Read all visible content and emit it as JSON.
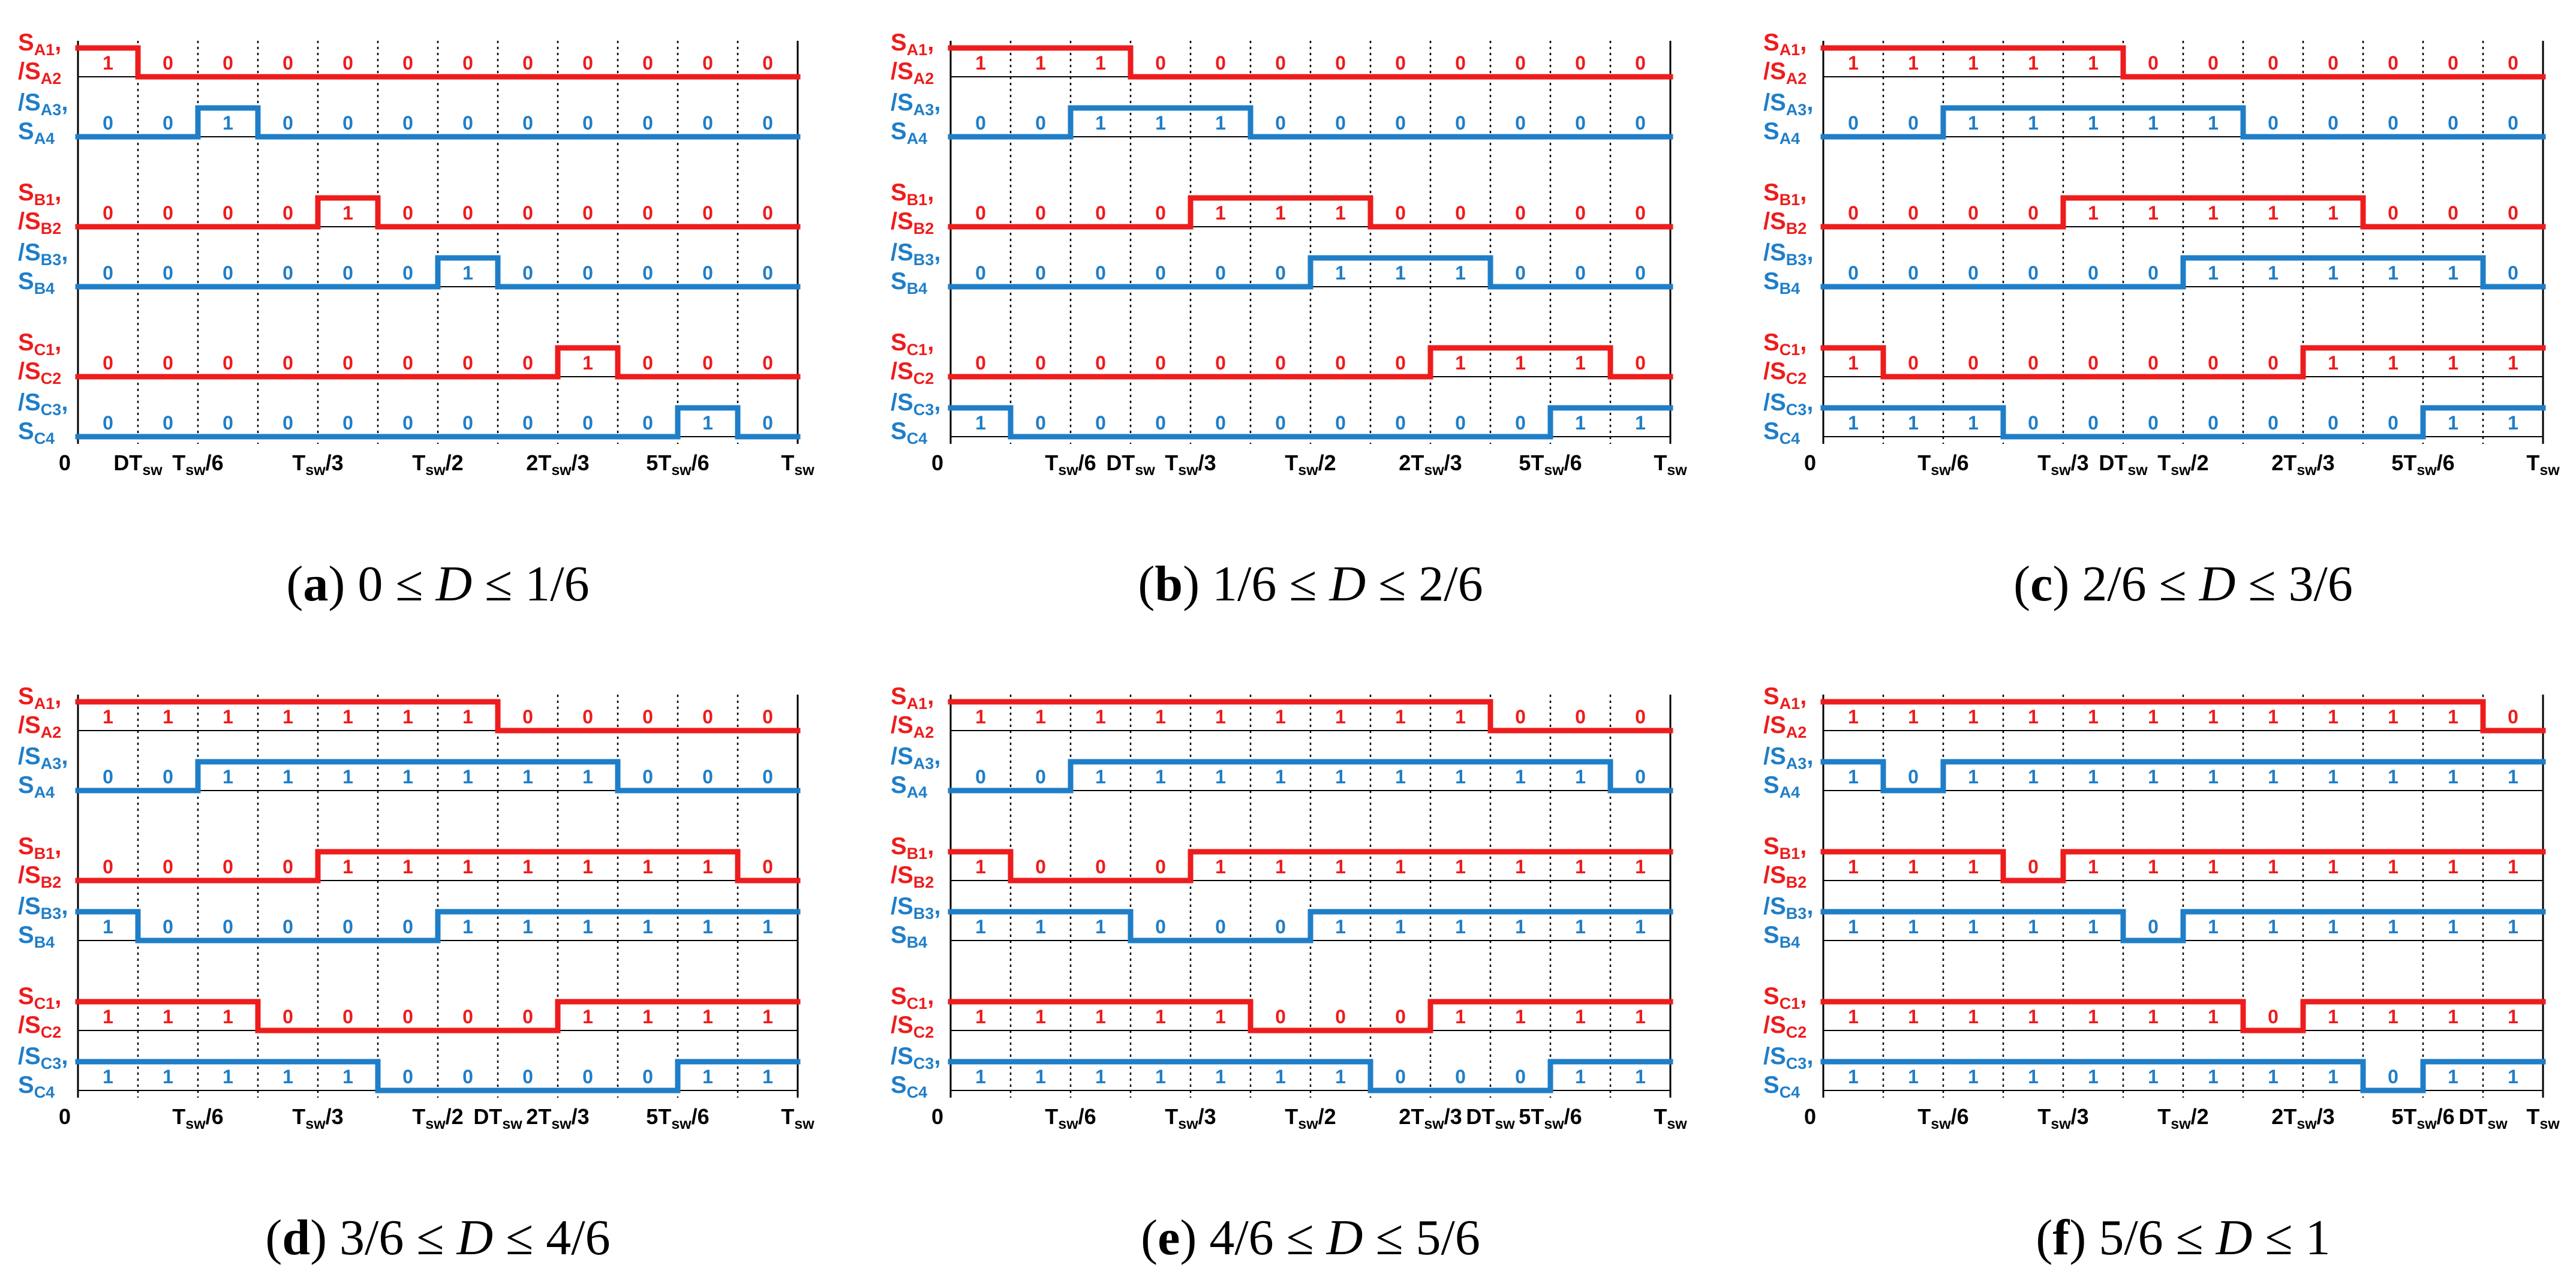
{
  "colors": {
    "red": "#ee1c1c",
    "blue": "#1f7ec8",
    "black": "#000000"
  },
  "row_labels": [
    [
      {
        "s": "S",
        "sub": "A1",
        "tail": ","
      },
      {
        "s": "/S",
        "sub": "A2",
        "tail": ""
      }
    ],
    [
      {
        "s": "/S",
        "sub": "A3",
        "tail": ","
      },
      {
        "s": "S",
        "sub": "A4",
        "tail": ""
      }
    ],
    [
      {
        "s": "S",
        "sub": "B1",
        "tail": ","
      },
      {
        "s": "/S",
        "sub": "B2",
        "tail": ""
      }
    ],
    [
      {
        "s": "/S",
        "sub": "B3",
        "tail": ","
      },
      {
        "s": "S",
        "sub": "B4",
        "tail": ""
      }
    ],
    [
      {
        "s": "S",
        "sub": "C1",
        "tail": ","
      },
      {
        "s": "/S",
        "sub": "C2",
        "tail": ""
      }
    ],
    [
      {
        "s": "/S",
        "sub": "C3",
        "tail": ","
      },
      {
        "s": "S",
        "sub": "C4",
        "tail": ""
      }
    ]
  ],
  "panels": [
    {
      "caption": {
        "letter": "a",
        "before": ") 0 ≤ ",
        "var": "D",
        "after": " ≤ 1/6"
      },
      "states": [
        [
          1,
          0,
          0,
          0,
          0,
          0,
          0,
          0,
          0,
          0,
          0,
          0
        ],
        [
          0,
          0,
          1,
          0,
          0,
          0,
          0,
          0,
          0,
          0,
          0,
          0
        ],
        [
          0,
          0,
          0,
          0,
          1,
          0,
          0,
          0,
          0,
          0,
          0,
          0
        ],
        [
          0,
          0,
          0,
          0,
          0,
          0,
          1,
          0,
          0,
          0,
          0,
          0
        ],
        [
          0,
          0,
          0,
          0,
          0,
          0,
          0,
          0,
          1,
          0,
          0,
          0
        ],
        [
          0,
          0,
          0,
          0,
          0,
          0,
          0,
          0,
          0,
          0,
          1,
          0
        ]
      ],
      "ticks": [
        {
          "slot": 0,
          "pre": "0",
          "sub": "",
          "post": ""
        },
        {
          "slot": 1,
          "pre": "DT",
          "sub": "sw",
          "post": ""
        },
        {
          "slot": 2,
          "pre": "T",
          "sub": "sw",
          "post": "/6"
        },
        {
          "slot": 4,
          "pre": "T",
          "sub": "sw",
          "post": "/3"
        },
        {
          "slot": 6,
          "pre": "T",
          "sub": "sw",
          "post": "/2"
        },
        {
          "slot": 8,
          "pre": "2T",
          "sub": "sw",
          "post": "/3"
        },
        {
          "slot": 10,
          "pre": "5T",
          "sub": "sw",
          "post": "/6"
        },
        {
          "slot": 12,
          "pre": "T",
          "sub": "sw",
          "post": ""
        }
      ]
    },
    {
      "caption": {
        "letter": "b",
        "before": ") 1/6 ≤ ",
        "var": "D",
        "after": " ≤ 2/6"
      },
      "states": [
        [
          1,
          1,
          1,
          0,
          0,
          0,
          0,
          0,
          0,
          0,
          0,
          0
        ],
        [
          0,
          0,
          1,
          1,
          1,
          0,
          0,
          0,
          0,
          0,
          0,
          0
        ],
        [
          0,
          0,
          0,
          0,
          1,
          1,
          1,
          0,
          0,
          0,
          0,
          0
        ],
        [
          0,
          0,
          0,
          0,
          0,
          0,
          1,
          1,
          1,
          0,
          0,
          0
        ],
        [
          0,
          0,
          0,
          0,
          0,
          0,
          0,
          0,
          1,
          1,
          1,
          0
        ],
        [
          1,
          0,
          0,
          0,
          0,
          0,
          0,
          0,
          0,
          0,
          1,
          1
        ]
      ],
      "ticks": [
        {
          "slot": 0,
          "pre": "0",
          "sub": "",
          "post": ""
        },
        {
          "slot": 2,
          "pre": "T",
          "sub": "sw",
          "post": "/6"
        },
        {
          "slot": 3,
          "pre": "DT",
          "sub": "sw",
          "post": ""
        },
        {
          "slot": 4,
          "pre": "T",
          "sub": "sw",
          "post": "/3"
        },
        {
          "slot": 6,
          "pre": "T",
          "sub": "sw",
          "post": "/2"
        },
        {
          "slot": 8,
          "pre": "2T",
          "sub": "sw",
          "post": "/3"
        },
        {
          "slot": 10,
          "pre": "5T",
          "sub": "sw",
          "post": "/6"
        },
        {
          "slot": 12,
          "pre": "T",
          "sub": "sw",
          "post": ""
        }
      ]
    },
    {
      "caption": {
        "letter": "c",
        "before": ") 2/6 ≤ ",
        "var": "D",
        "after": " ≤ 3/6"
      },
      "states": [
        [
          1,
          1,
          1,
          1,
          1,
          0,
          0,
          0,
          0,
          0,
          0,
          0
        ],
        [
          0,
          0,
          1,
          1,
          1,
          1,
          1,
          0,
          0,
          0,
          0,
          0
        ],
        [
          0,
          0,
          0,
          0,
          1,
          1,
          1,
          1,
          1,
          0,
          0,
          0
        ],
        [
          0,
          0,
          0,
          0,
          0,
          0,
          1,
          1,
          1,
          1,
          1,
          0
        ],
        [
          1,
          0,
          0,
          0,
          0,
          0,
          0,
          0,
          1,
          1,
          1,
          1
        ],
        [
          1,
          1,
          1,
          0,
          0,
          0,
          0,
          0,
          0,
          0,
          1,
          1
        ]
      ],
      "ticks": [
        {
          "slot": 0,
          "pre": "0",
          "sub": "",
          "post": ""
        },
        {
          "slot": 2,
          "pre": "T",
          "sub": "sw",
          "post": "/6"
        },
        {
          "slot": 4,
          "pre": "T",
          "sub": "sw",
          "post": "/3"
        },
        {
          "slot": 5,
          "pre": "DT",
          "sub": "sw",
          "post": ""
        },
        {
          "slot": 6,
          "pre": "T",
          "sub": "sw",
          "post": "/2"
        },
        {
          "slot": 8,
          "pre": "2T",
          "sub": "sw",
          "post": "/3"
        },
        {
          "slot": 10,
          "pre": "5T",
          "sub": "sw",
          "post": "/6"
        },
        {
          "slot": 12,
          "pre": "T",
          "sub": "sw",
          "post": ""
        }
      ]
    },
    {
      "caption": {
        "letter": "d",
        "before": ") 3/6 ≤ ",
        "var": "D",
        "after": " ≤ 4/6"
      },
      "states": [
        [
          1,
          1,
          1,
          1,
          1,
          1,
          1,
          0,
          0,
          0,
          0,
          0
        ],
        [
          0,
          0,
          1,
          1,
          1,
          1,
          1,
          1,
          1,
          0,
          0,
          0
        ],
        [
          0,
          0,
          0,
          0,
          1,
          1,
          1,
          1,
          1,
          1,
          1,
          0
        ],
        [
          1,
          0,
          0,
          0,
          0,
          0,
          1,
          1,
          1,
          1,
          1,
          1
        ],
        [
          1,
          1,
          1,
          0,
          0,
          0,
          0,
          0,
          1,
          1,
          1,
          1
        ],
        [
          1,
          1,
          1,
          1,
          1,
          0,
          0,
          0,
          0,
          0,
          1,
          1
        ]
      ],
      "ticks": [
        {
          "slot": 0,
          "pre": "0",
          "sub": "",
          "post": ""
        },
        {
          "slot": 2,
          "pre": "T",
          "sub": "sw",
          "post": "/6"
        },
        {
          "slot": 4,
          "pre": "T",
          "sub": "sw",
          "post": "/3"
        },
        {
          "slot": 6,
          "pre": "T",
          "sub": "sw",
          "post": "/2"
        },
        {
          "slot": 7,
          "pre": "DT",
          "sub": "sw",
          "post": ""
        },
        {
          "slot": 8,
          "pre": "2T",
          "sub": "sw",
          "post": "/3"
        },
        {
          "slot": 10,
          "pre": "5T",
          "sub": "sw",
          "post": "/6"
        },
        {
          "slot": 12,
          "pre": "T",
          "sub": "sw",
          "post": ""
        }
      ]
    },
    {
      "caption": {
        "letter": "e",
        "before": ") 4/6 ≤ ",
        "var": "D",
        "after": " ≤ 5/6"
      },
      "states": [
        [
          1,
          1,
          1,
          1,
          1,
          1,
          1,
          1,
          1,
          0,
          0,
          0
        ],
        [
          0,
          0,
          1,
          1,
          1,
          1,
          1,
          1,
          1,
          1,
          1,
          0
        ],
        [
          1,
          0,
          0,
          0,
          1,
          1,
          1,
          1,
          1,
          1,
          1,
          1
        ],
        [
          1,
          1,
          1,
          0,
          0,
          0,
          1,
          1,
          1,
          1,
          1,
          1
        ],
        [
          1,
          1,
          1,
          1,
          1,
          0,
          0,
          0,
          1,
          1,
          1,
          1
        ],
        [
          1,
          1,
          1,
          1,
          1,
          1,
          1,
          0,
          0,
          0,
          1,
          1
        ]
      ],
      "ticks": [
        {
          "slot": 0,
          "pre": "0",
          "sub": "",
          "post": ""
        },
        {
          "slot": 2,
          "pre": "T",
          "sub": "sw",
          "post": "/6"
        },
        {
          "slot": 4,
          "pre": "T",
          "sub": "sw",
          "post": "/3"
        },
        {
          "slot": 6,
          "pre": "T",
          "sub": "sw",
          "post": "/2"
        },
        {
          "slot": 8,
          "pre": "2T",
          "sub": "sw",
          "post": "/3"
        },
        {
          "slot": 9,
          "pre": "DT",
          "sub": "sw",
          "post": ""
        },
        {
          "slot": 10,
          "pre": "5T",
          "sub": "sw",
          "post": "/6"
        },
        {
          "slot": 12,
          "pre": "T",
          "sub": "sw",
          "post": ""
        }
      ]
    },
    {
      "caption": {
        "letter": "f",
        "before": ") 5/6 ≤ ",
        "var": "D",
        "after": " ≤ 1"
      },
      "states": [
        [
          1,
          1,
          1,
          1,
          1,
          1,
          1,
          1,
          1,
          1,
          1,
          0
        ],
        [
          1,
          0,
          1,
          1,
          1,
          1,
          1,
          1,
          1,
          1,
          1,
          1
        ],
        [
          1,
          1,
          1,
          0,
          1,
          1,
          1,
          1,
          1,
          1,
          1,
          1
        ],
        [
          1,
          1,
          1,
          1,
          1,
          0,
          1,
          1,
          1,
          1,
          1,
          1
        ],
        [
          1,
          1,
          1,
          1,
          1,
          1,
          1,
          0,
          1,
          1,
          1,
          1
        ],
        [
          1,
          1,
          1,
          1,
          1,
          1,
          1,
          1,
          1,
          0,
          1,
          1
        ]
      ],
      "ticks": [
        {
          "slot": 0,
          "pre": "0",
          "sub": "",
          "post": ""
        },
        {
          "slot": 2,
          "pre": "T",
          "sub": "sw",
          "post": "/6"
        },
        {
          "slot": 4,
          "pre": "T",
          "sub": "sw",
          "post": "/3"
        },
        {
          "slot": 6,
          "pre": "T",
          "sub": "sw",
          "post": "/2"
        },
        {
          "slot": 8,
          "pre": "2T",
          "sub": "sw",
          "post": "/3"
        },
        {
          "slot": 10,
          "pre": "5T",
          "sub": "sw",
          "post": "/6"
        },
        {
          "slot": 11,
          "pre": "DT",
          "sub": "sw",
          "post": ""
        },
        {
          "slot": 12,
          "pre": "T",
          "sub": "sw",
          "post": ""
        }
      ]
    }
  ]
}
